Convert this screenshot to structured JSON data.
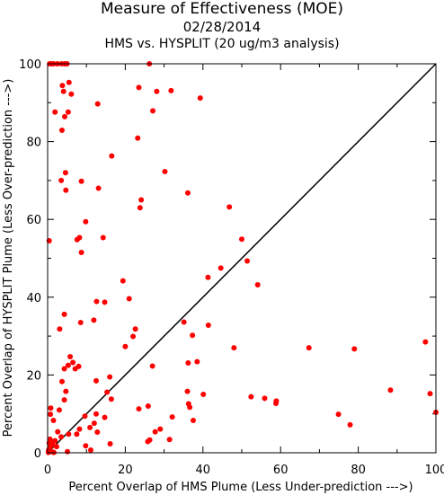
{
  "chart_data": {
    "type": "scatter",
    "title": "Measure of Effectiveness (MOE)",
    "date": "02/28/2014",
    "subtitle": "HMS vs. HYSPLIT  (20 ug/m3 analysis)",
    "xlabel": "Percent Overlap of HMS Plume (Less Under-prediction --->)",
    "ylabel": "Percent Overlap of HYSPLIT Plume (Less Over-prediction --->)",
    "xlim": [
      0,
      100
    ],
    "ylim": [
      0,
      100
    ],
    "xticks": [
      "0",
      "20",
      "40",
      "60",
      "80",
      "100"
    ],
    "yticks": [
      "0",
      "20",
      "40",
      "60",
      "80",
      "100"
    ],
    "reference_line": "diagonal y = x",
    "point_color": "#ff0000",
    "points": [
      [
        0.5,
        100
      ],
      [
        1.0,
        100
      ],
      [
        1.5,
        100
      ],
      [
        2.5,
        100
      ],
      [
        3.6,
        100
      ],
      [
        4.4,
        100
      ],
      [
        5.0,
        100
      ],
      [
        26.2,
        100
      ],
      [
        3.8,
        94.4
      ],
      [
        5.5,
        95.2
      ],
      [
        6.1,
        92.2
      ],
      [
        4.1,
        92.9
      ],
      [
        23.5,
        93.9
      ],
      [
        28.1,
        92.9
      ],
      [
        31.8,
        93.1
      ],
      [
        39.3,
        91.2
      ],
      [
        12.9,
        89.7
      ],
      [
        1.9,
        87.6
      ],
      [
        4.4,
        86.4
      ],
      [
        5.3,
        87.6
      ],
      [
        27.1,
        87.9
      ],
      [
        3.7,
        82.9
      ],
      [
        23.2,
        80.9
      ],
      [
        16.5,
        76.3
      ],
      [
        4.6,
        72.0
      ],
      [
        30.2,
        72.3
      ],
      [
        3.5,
        70.0
      ],
      [
        8.7,
        69.8
      ],
      [
        4.7,
        67.5
      ],
      [
        13.1,
        68.0
      ],
      [
        36.1,
        66.8
      ],
      [
        24.1,
        65.0
      ],
      [
        23.8,
        63.0
      ],
      [
        46.8,
        63.2
      ],
      [
        9.8,
        59.4
      ],
      [
        0.4,
        54.5
      ],
      [
        8.2,
        55.3
      ],
      [
        14.3,
        55.3
      ],
      [
        7.6,
        54.8
      ],
      [
        50.0,
        54.9
      ],
      [
        8.7,
        51.5
      ],
      [
        51.4,
        49.3
      ],
      [
        44.6,
        47.5
      ],
      [
        19.4,
        44.2
      ],
      [
        41.3,
        45.1
      ],
      [
        54.1,
        43.2
      ],
      [
        21.0,
        39.6
      ],
      [
        12.6,
        38.9
      ],
      [
        14.7,
        38.7
      ],
      [
        4.3,
        35.6
      ],
      [
        11.9,
        34.1
      ],
      [
        8.5,
        33.5
      ],
      [
        35.1,
        33.6
      ],
      [
        41.4,
        32.8
      ],
      [
        3.1,
        31.8
      ],
      [
        22.6,
        31.8
      ],
      [
        22.0,
        29.9
      ],
      [
        37.3,
        30.2
      ],
      [
        20.0,
        27.3
      ],
      [
        48.0,
        27.0
      ],
      [
        67.3,
        27.0
      ],
      [
        79.0,
        26.7
      ],
      [
        97.3,
        28.5
      ],
      [
        5.8,
        24.7
      ],
      [
        6.5,
        23.2
      ],
      [
        5.3,
        22.5
      ],
      [
        8.0,
        22.2
      ],
      [
        27.0,
        22.3
      ],
      [
        7.1,
        21.6
      ],
      [
        36.2,
        23.1
      ],
      [
        38.5,
        23.4
      ],
      [
        4.3,
        21.6
      ],
      [
        16.0,
        19.5
      ],
      [
        3.7,
        18.3
      ],
      [
        12.5,
        18.5
      ],
      [
        15.3,
        15.6
      ],
      [
        36.0,
        15.8
      ],
      [
        40.1,
        15.0
      ],
      [
        4.7,
        15.8
      ],
      [
        4.3,
        13.6
      ],
      [
        16.4,
        13.8
      ],
      [
        52.4,
        14.4
      ],
      [
        55.9,
        14.0
      ],
      [
        58.9,
        13.3
      ],
      [
        88.3,
        16.1
      ],
      [
        98.5,
        15.2
      ],
      [
        36.3,
        12.6
      ],
      [
        36.6,
        11.7
      ],
      [
        25.9,
        12.0
      ],
      [
        23.5,
        11.3
      ],
      [
        0.8,
        11.5
      ],
      [
        3.0,
        11.0
      ],
      [
        9.6,
        9.4
      ],
      [
        12.5,
        10.0
      ],
      [
        0.7,
        9.9
      ],
      [
        58.8,
        12.7
      ],
      [
        37.5,
        8.3
      ],
      [
        14.7,
        9.1
      ],
      [
        32.1,
        9.2
      ],
      [
        74.9,
        9.9
      ],
      [
        100,
        10.4
      ],
      [
        1.5,
        8.3
      ],
      [
        12.0,
        7.6
      ],
      [
        10.9,
        6.5
      ],
      [
        8.2,
        6.1
      ],
      [
        7.5,
        4.8
      ],
      [
        2.6,
        5.4
      ],
      [
        5.4,
        4.8
      ],
      [
        3.5,
        4.1
      ],
      [
        77.9,
        7.2
      ],
      [
        27.7,
        5.4
      ],
      [
        29.0,
        6.1
      ],
      [
        12.8,
        5.3
      ],
      [
        31.4,
        3.4
      ],
      [
        0.6,
        3.5
      ],
      [
        1.0,
        2.9
      ],
      [
        1.9,
        3.1
      ],
      [
        0.4,
        2.5
      ],
      [
        1.2,
        2.1
      ],
      [
        0.6,
        1.4
      ],
      [
        9.8,
        1.8
      ],
      [
        2.3,
        1.6
      ],
      [
        11.1,
        0.7
      ],
      [
        16.1,
        2.3
      ],
      [
        25.8,
        2.9
      ],
      [
        26.3,
        3.3
      ],
      [
        0.2,
        0.4
      ],
      [
        0.7,
        0.5
      ],
      [
        1.3,
        0.2
      ],
      [
        0.2,
        0.1
      ],
      [
        1.6,
        0.1
      ],
      [
        5.1,
        0.3
      ],
      [
        0.3,
        0.8
      ]
    ]
  }
}
